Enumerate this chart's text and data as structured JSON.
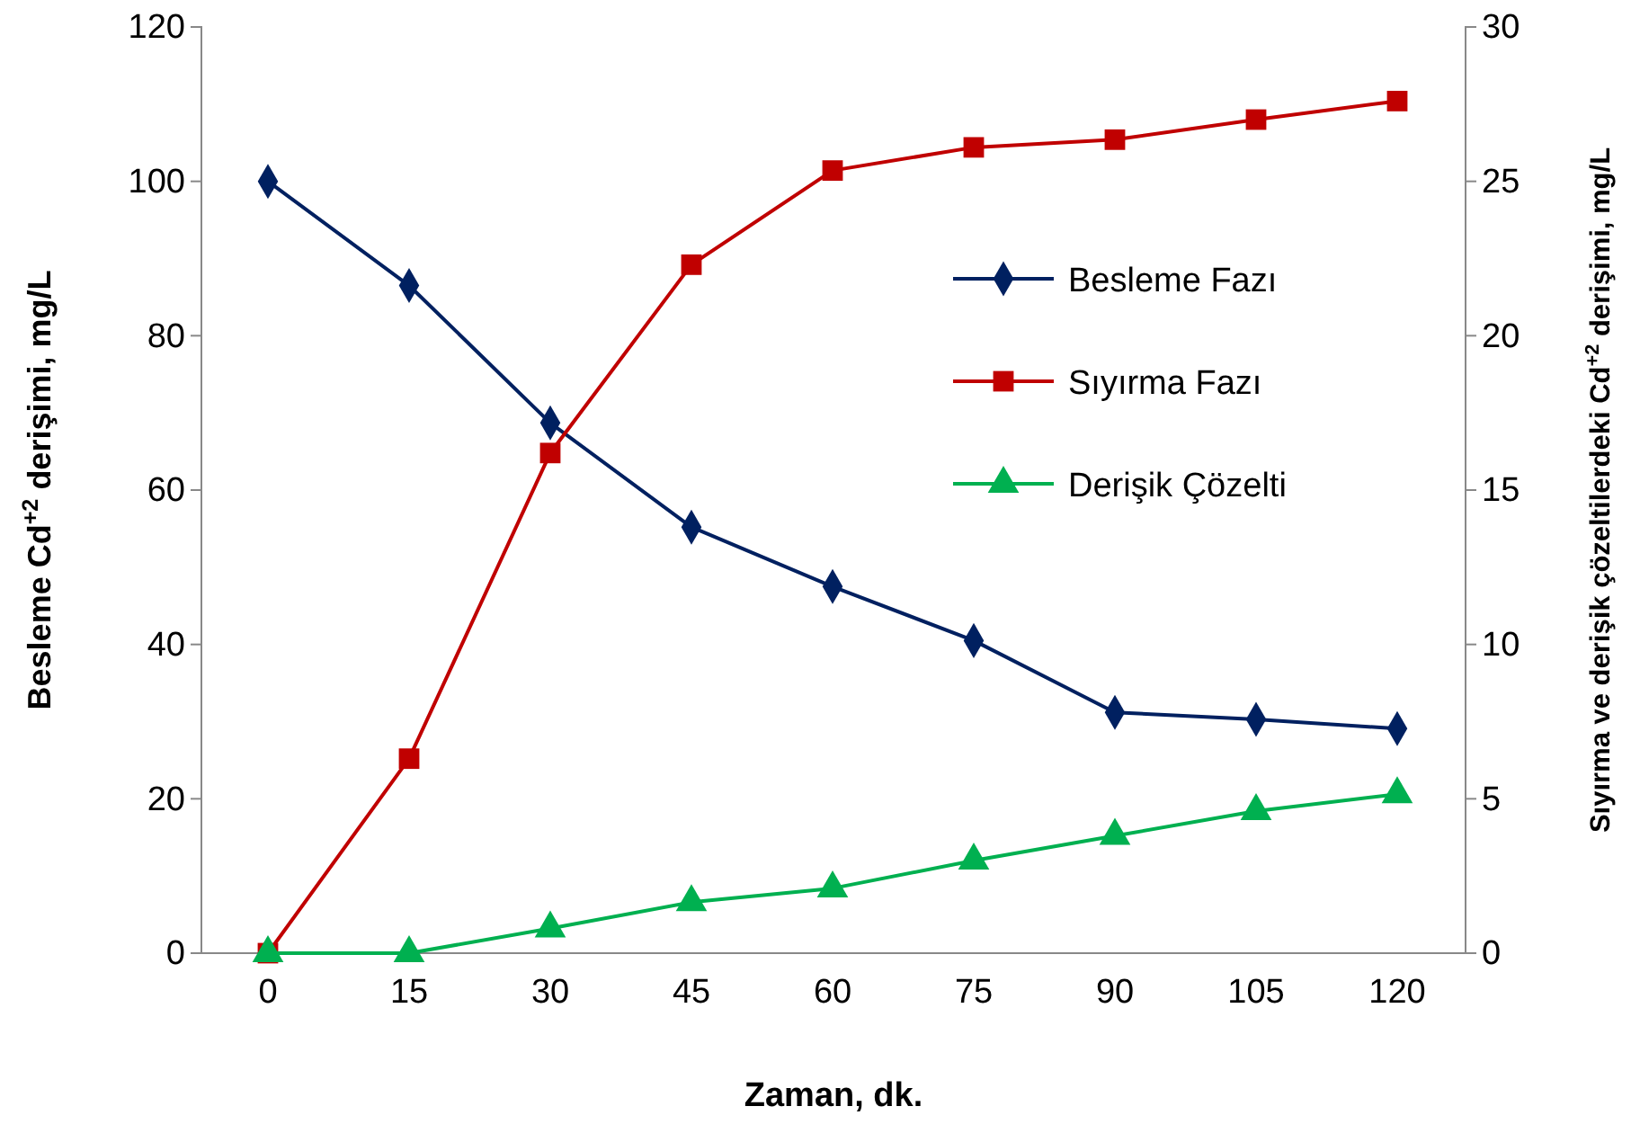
{
  "chart_data": {
    "type": "line",
    "xlabel": "Zaman, dk.",
    "ylabel": "Besleme Cd$^{+2}$ derişimi, mg/L",
    "y2label": "Sıyırma ve derişik çözeltilerdeki Cd$^{+2}$ derişimi, mg/L",
    "categories": [
      "0",
      "15",
      "30",
      "45",
      "60",
      "75",
      "90",
      "105",
      "120"
    ],
    "ylim": [
      0,
      120
    ],
    "yticks": [
      0,
      20,
      40,
      60,
      80,
      100,
      120
    ],
    "y2lim": [
      0,
      30
    ],
    "y2ticks": [
      0,
      5,
      10,
      15,
      20,
      25,
      30
    ],
    "grid": false,
    "legend": "right",
    "line_style": "solid",
    "series": [
      {
        "name": "Besleme Fazı",
        "color": "#002060",
        "marker": "diamond",
        "values": [
          100,
          86.5,
          68.7,
          55.2,
          47.5,
          40.5,
          31.2,
          30.3,
          29.1
        ]
      },
      {
        "name": "Sıyırma Fazı",
        "color": "#c00000",
        "marker": "square",
        "axis": "y2",
        "values": [
          0,
          6.3,
          16.2,
          22.3,
          25.35,
          26.1,
          26.35,
          27,
          27.6
        ]
      },
      {
        "name": "Derişik Çözelti",
        "color": "#00b050",
        "marker": "triangle",
        "axis": "y2",
        "values": [
          0,
          0,
          0.8,
          1.65,
          2.1,
          3.0,
          3.8,
          4.6,
          5.15
        ]
      }
    ]
  }
}
